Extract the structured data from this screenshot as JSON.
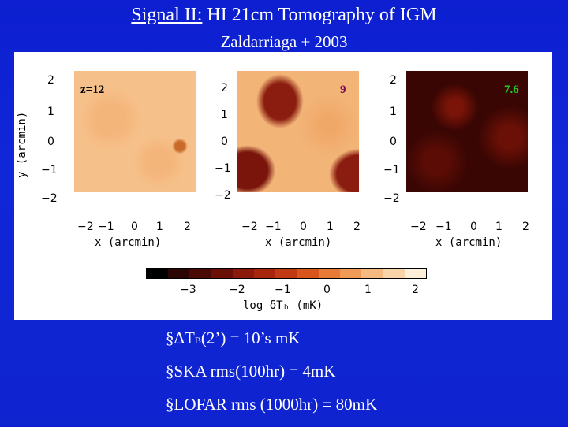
{
  "title_prefix": "Signal II:",
  "title_rest": " HI 21cm Tomography of IGM",
  "subtitle": "Zaldarriaga + 2003",
  "figure": {
    "panels": [
      {
        "z_label": "z=12"
      },
      {
        "z_label": "9"
      },
      {
        "z_label": "7.6"
      }
    ],
    "y_ticks": [
      "2",
      "1",
      "0",
      "−1",
      "−2"
    ],
    "x_ticks": [
      "−2",
      "−1",
      "0",
      "1",
      "2"
    ],
    "x_axis_title": "x (arcmin)",
    "y_axis_title": "y (arcmin)",
    "colorbar_ticks": [
      "−3",
      "−2",
      "−1",
      "0",
      "1",
      "2"
    ],
    "colorbar_title": "log δTₕ (mK)",
    "colors": [
      "#000000",
      "#2a0502",
      "#4a0904",
      "#6a1006",
      "#8a1a0a",
      "#a8260e",
      "#c23a14",
      "#d8561e",
      "#e87a38",
      "#f09a58",
      "#f5b880",
      "#f9d4a8",
      "#fdeed8"
    ]
  },
  "bullets": {
    "b1_prefix": "§ΔT",
    "b1_sub": "B",
    "b1_rest": "(2’) = 10’s mK",
    "b2": "§SKA rms(100hr) = 4mK",
    "b3": "§LOFAR rms (1000hr) = 80mK"
  }
}
